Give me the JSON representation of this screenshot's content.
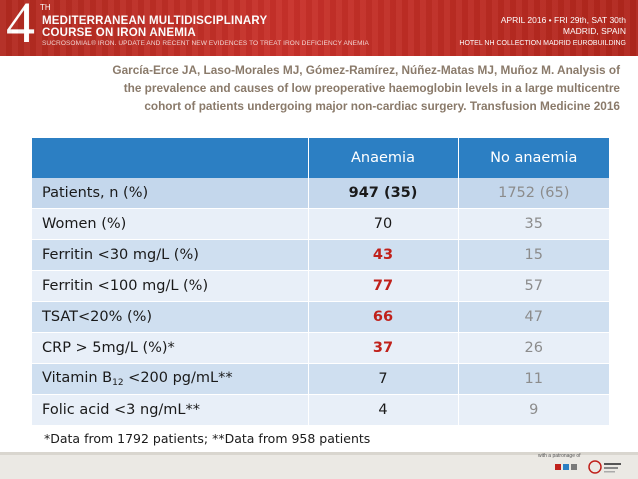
{
  "header": {
    "number": "4",
    "ordinal": "TH",
    "title_line1": "MEDITERRANEAN MULTIDISCIPLINARY",
    "title_line2": "COURSE ON IRON ANEMIA",
    "subtitle": "SUCROSOMIAL® IRON. UPDATE AND RECENT NEW EVIDENCES TO TREAT IRON DEFICIENCY ANEMIA",
    "date": "APRIL 2016 • FRI 29th, SAT 30th",
    "city": "MADRID, SPAIN",
    "venue": "HOTEL NH COLLECTION MADRID EUROBUILDING"
  },
  "citation": {
    "line1": "García-Erce JA, Laso-Morales MJ, Gómez-Ramírez, Núñez-Matas MJ, Muñoz M. Analysis of",
    "line2": "the prevalence and causes of low preoperative haemoglobin levels in a large multicentre",
    "line3": "cohort of patients undergoing major non-cardiac surgery. Transfusion Medicine 2016"
  },
  "table": {
    "columns": [
      "",
      "Anaemia",
      "No anaemia"
    ],
    "rows": [
      {
        "label": "Patients, n (%)",
        "anaemia": "947 (35)",
        "no_anaemia": "1752 (65)"
      },
      {
        "label": "Women (%)",
        "anaemia": "70",
        "no_anaemia": "35"
      },
      {
        "label": "Ferritin <30 mg/L (%)",
        "anaemia": "43",
        "no_anaemia": "15"
      },
      {
        "label": "Ferritin <100 mg/L (%)",
        "anaemia": "77",
        "no_anaemia": "57"
      },
      {
        "label": "TSAT<20% (%)",
        "anaemia": "66",
        "no_anaemia": "47"
      },
      {
        "label": "CRP > 5mg/L (%)*",
        "anaemia": "37",
        "no_anaemia": "26"
      },
      {
        "label_pre": "Vitamin B",
        "label_sub": "12",
        "label_post": " <200 pg/mL**",
        "anaemia": "7",
        "no_anaemia": "11"
      },
      {
        "label": "Folic acid <3 ng/mL**",
        "anaemia": "4",
        "no_anaemia": "9"
      }
    ]
  },
  "footnote": "*Data from  1792 patients; **Data from 958 patients",
  "footer": {
    "patronage": "with a patronage of"
  },
  "colors": {
    "banner": "#c8312a",
    "header_row": "#2c7fc3",
    "highlight": "#c0211b",
    "row_light": "#e8eff8",
    "row_dark": "#cfdff0",
    "citation": "#8a7a6a"
  }
}
